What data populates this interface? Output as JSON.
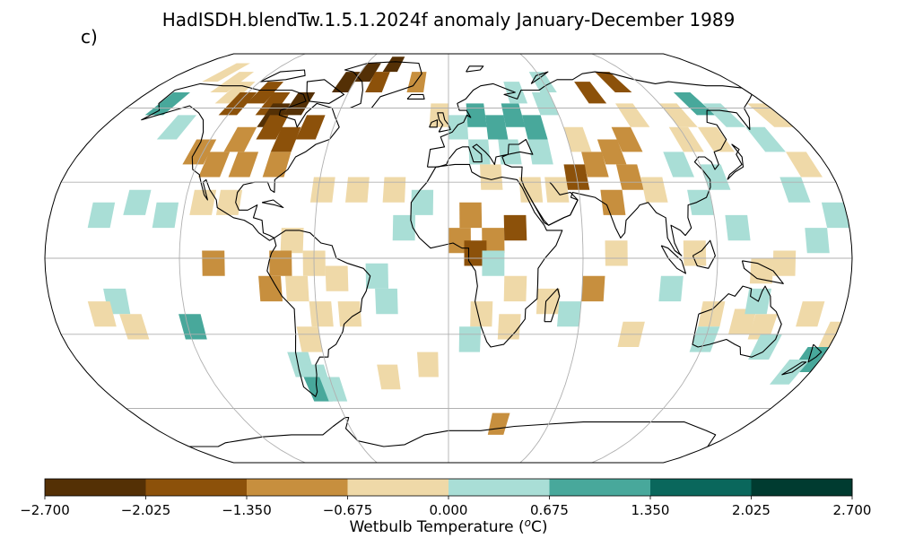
{
  "figure": {
    "title": "HadISDH.blendTw.1.5.1.2024f anomaly January-December 1989",
    "panel_label": "c)"
  },
  "colorbar": {
    "label_prefix": "Wetbulb Temperature (",
    "label_unit_sup": "o",
    "label_suffix": "C)",
    "ticks": [
      "−2.700",
      "−2.025",
      "−1.350",
      "−0.675",
      "0.000",
      "0.675",
      "1.350",
      "2.025",
      "2.700"
    ],
    "colors": [
      "#543005",
      "#8c510a",
      "#c78f3e",
      "#efd9a8",
      "#a9ded6",
      "#48a89b",
      "#0a675c",
      "#003b30"
    ]
  },
  "chart_data": {
    "type": "heatmap",
    "projection": "Robinson",
    "variable": "Wetbulb Temperature anomaly",
    "units": "°C",
    "vmin": -2.7,
    "vmax": 2.7,
    "bounds": [
      -2.7,
      -2.025,
      -1.35,
      -0.675,
      0.0,
      0.675,
      1.35,
      2.025,
      2.7
    ],
    "graticule": {
      "meridians_deg": [
        -120,
        -60,
        0,
        60,
        120
      ],
      "parallels_deg": [
        -60,
        -30,
        0,
        30,
        60
      ]
    },
    "grid_cells": [
      {
        "lon": -152,
        "lat": 77,
        "class": 3
      },
      {
        "lon": -138,
        "lat": 72,
        "class": 3
      },
      {
        "lon": -128,
        "lat": 67,
        "class": 3
      },
      {
        "lon": -120,
        "lat": 62,
        "class": 1
      },
      {
        "lon": -110,
        "lat": 67,
        "class": 1
      },
      {
        "lon": -100,
        "lat": 62,
        "class": 1
      },
      {
        "lon": -95,
        "lat": 57,
        "class": 0
      },
      {
        "lon": -85,
        "lat": 62,
        "class": 0
      },
      {
        "lon": -92,
        "lat": 52,
        "class": 1
      },
      {
        "lon": -105,
        "lat": 47,
        "class": 2
      },
      {
        "lon": -82,
        "lat": 47,
        "class": 1
      },
      {
        "lon": -72,
        "lat": 52,
        "class": 1
      },
      {
        "lon": -65,
        "lat": 72,
        "class": 0
      },
      {
        "lon": -55,
        "lat": 77,
        "class": 0
      },
      {
        "lon": -40,
        "lat": 82,
        "class": 0
      },
      {
        "lon": -45,
        "lat": 72,
        "class": 1
      },
      {
        "lon": -20,
        "lat": 72,
        "class": 2
      },
      {
        "lon": -160,
        "lat": 62,
        "class": 5
      },
      {
        "lon": -142,
        "lat": 52,
        "class": 4
      },
      {
        "lon": -122,
        "lat": 42,
        "class": 2
      },
      {
        "lon": -112,
        "lat": 37,
        "class": 2
      },
      {
        "lon": -98,
        "lat": 37,
        "class": 2
      },
      {
        "lon": -82,
        "lat": 37,
        "class": 2
      },
      {
        "lon": -157,
        "lat": 17,
        "class": 4
      },
      {
        "lon": -142,
        "lat": 22,
        "class": 4
      },
      {
        "lon": -128,
        "lat": 17,
        "class": 4
      },
      {
        "lon": -112,
        "lat": 22,
        "class": 3
      },
      {
        "lon": -100,
        "lat": 22,
        "class": 3
      },
      {
        "lon": -58,
        "lat": 27,
        "class": 3
      },
      {
        "lon": -42,
        "lat": 27,
        "class": 3
      },
      {
        "lon": -25,
        "lat": 27,
        "class": 3
      },
      {
        "lon": -12,
        "lat": 22,
        "class": 4
      },
      {
        "lon": -20,
        "lat": 12,
        "class": 4
      },
      {
        "lon": -70,
        "lat": 7,
        "class": 3
      },
      {
        "lon": -60,
        "lat": -2,
        "class": 3
      },
      {
        "lon": -50,
        "lat": -8,
        "class": 3
      },
      {
        "lon": -68,
        "lat": -12,
        "class": 3
      },
      {
        "lon": -58,
        "lat": -22,
        "class": 3
      },
      {
        "lon": -45,
        "lat": -22,
        "class": 3
      },
      {
        "lon": -65,
        "lat": -32,
        "class": 3
      },
      {
        "lon": -75,
        "lat": -2,
        "class": 2
      },
      {
        "lon": -80,
        "lat": -12,
        "class": 2
      },
      {
        "lon": -105,
        "lat": -2,
        "class": 2
      },
      {
        "lon": -32,
        "lat": -7,
        "class": 4
      },
      {
        "lon": -28,
        "lat": -17,
        "class": 4
      },
      {
        "lon": -72,
        "lat": -42,
        "class": 4
      },
      {
        "lon": -66,
        "lat": -47,
        "class": 4
      },
      {
        "lon": -68,
        "lat": -52,
        "class": 5
      },
      {
        "lon": -60,
        "lat": -52,
        "class": 4
      },
      {
        "lon": -118,
        "lat": -27,
        "class": 5
      },
      {
        "lon": -150,
        "lat": -17,
        "class": 4
      },
      {
        "lon": -145,
        "lat": -27,
        "class": 3
      },
      {
        "lon": -158,
        "lat": -22,
        "class": 3
      },
      {
        "lon": -30,
        "lat": -47,
        "class": 3
      },
      {
        "lon": -10,
        "lat": -42,
        "class": 3
      },
      {
        "lon": 30,
        "lat": -67,
        "class": 2
      },
      {
        "lon": -5,
        "lat": 57,
        "class": 3
      },
      {
        "lon": 5,
        "lat": 52,
        "class": 4
      },
      {
        "lon": 15,
        "lat": 57,
        "class": 5
      },
      {
        "lon": 25,
        "lat": 52,
        "class": 5
      },
      {
        "lon": 35,
        "lat": 57,
        "class": 5
      },
      {
        "lon": 45,
        "lat": 52,
        "class": 5
      },
      {
        "lon": 40,
        "lat": 67,
        "class": 4
      },
      {
        "lon": 55,
        "lat": 62,
        "class": 4
      },
      {
        "lon": 60,
        "lat": 72,
        "class": 4
      },
      {
        "lon": 15,
        "lat": 42,
        "class": 4
      },
      {
        "lon": 30,
        "lat": 42,
        "class": 4
      },
      {
        "lon": 45,
        "lat": 42,
        "class": 4
      },
      {
        "lon": 20,
        "lat": 32,
        "class": 3
      },
      {
        "lon": 38,
        "lat": 27,
        "class": 3
      },
      {
        "lon": 50,
        "lat": 27,
        "class": 3
      },
      {
        "lon": 10,
        "lat": 17,
        "class": 2
      },
      {
        "lon": 5,
        "lat": 7,
        "class": 2
      },
      {
        "lon": 20,
        "lat": 7,
        "class": 2
      },
      {
        "lon": 12,
        "lat": 2,
        "class": 1
      },
      {
        "lon": 30,
        "lat": 12,
        "class": 1
      },
      {
        "lon": 20,
        "lat": -2,
        "class": 4
      },
      {
        "lon": 30,
        "lat": -12,
        "class": 3
      },
      {
        "lon": 15,
        "lat": -22,
        "class": 3
      },
      {
        "lon": 28,
        "lat": -27,
        "class": 3
      },
      {
        "lon": 10,
        "lat": -32,
        "class": 4
      },
      {
        "lon": 45,
        "lat": -17,
        "class": 3
      },
      {
        "lon": 55,
        "lat": -22,
        "class": 4
      },
      {
        "lon": 65,
        "lat": -12,
        "class": 2
      },
      {
        "lon": 75,
        "lat": 2,
        "class": 3
      },
      {
        "lon": 70,
        "lat": 37,
        "class": 2
      },
      {
        "lon": 80,
        "lat": 42,
        "class": 2
      },
      {
        "lon": 90,
        "lat": 47,
        "class": 2
      },
      {
        "lon": 85,
        "lat": 32,
        "class": 2
      },
      {
        "lon": 95,
        "lat": 27,
        "class": 3
      },
      {
        "lon": 75,
        "lat": 22,
        "class": 2
      },
      {
        "lon": 60,
        "lat": 32,
        "class": 1
      },
      {
        "lon": 65,
        "lat": 47,
        "class": 3
      },
      {
        "lon": 100,
        "lat": 57,
        "class": 3
      },
      {
        "lon": 85,
        "lat": 67,
        "class": 1
      },
      {
        "lon": 105,
        "lat": 72,
        "class": 1
      },
      {
        "lon": 125,
        "lat": 57,
        "class": 3
      },
      {
        "lon": 140,
        "lat": 62,
        "class": 5
      },
      {
        "lon": 150,
        "lat": 57,
        "class": 4
      },
      {
        "lon": 120,
        "lat": 47,
        "class": 3
      },
      {
        "lon": 135,
        "lat": 47,
        "class": 3
      },
      {
        "lon": 110,
        "lat": 37,
        "class": 4
      },
      {
        "lon": 125,
        "lat": 32,
        "class": 4
      },
      {
        "lon": 115,
        "lat": 22,
        "class": 4
      },
      {
        "lon": 130,
        "lat": 12,
        "class": 4
      },
      {
        "lon": 110,
        "lat": 2,
        "class": 3
      },
      {
        "lon": 140,
        "lat": -5,
        "class": 3
      },
      {
        "lon": 150,
        "lat": -2,
        "class": 3
      },
      {
        "lon": 165,
        "lat": 7,
        "class": 4
      },
      {
        "lon": 175,
        "lat": 17,
        "class": 4
      },
      {
        "lon": 160,
        "lat": 27,
        "class": 4
      },
      {
        "lon": 170,
        "lat": 37,
        "class": 3
      },
      {
        "lon": 160,
        "lat": 47,
        "class": 4
      },
      {
        "lon": 175,
        "lat": 57,
        "class": 3
      },
      {
        "lon": 120,
        "lat": -22,
        "class": 3
      },
      {
        "lon": 135,
        "lat": -25,
        "class": 3
      },
      {
        "lon": 145,
        "lat": -27,
        "class": 3
      },
      {
        "lon": 140,
        "lat": -17,
        "class": 4
      },
      {
        "lon": 150,
        "lat": -35,
        "class": 4
      },
      {
        "lon": 120,
        "lat": -32,
        "class": 4
      },
      {
        "lon": 165,
        "lat": -22,
        "class": 3
      },
      {
        "lon": 175,
        "lat": -40,
        "class": 5
      },
      {
        "lon": 170,
        "lat": -45,
        "class": 4
      },
      {
        "lon": 180,
        "lat": -30,
        "class": 3
      },
      {
        "lon": 100,
        "lat": -12,
        "class": 4
      },
      {
        "lon": 85,
        "lat": -30,
        "class": 3
      }
    ]
  }
}
